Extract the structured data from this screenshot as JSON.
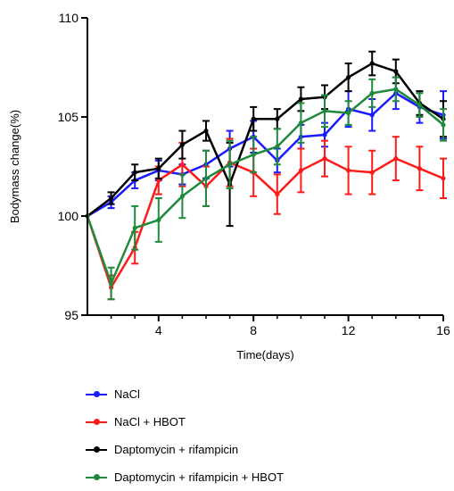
{
  "chart_data": {
    "type": "line",
    "title": "",
    "xlabel": "Time(days)",
    "ylabel": "Bodymass change(%)",
    "xlim": [
      1,
      16
    ],
    "ylim": [
      95,
      110
    ],
    "xticks": [
      4,
      8,
      12,
      16
    ],
    "yticks": [
      95,
      100,
      105,
      110
    ],
    "grid": false,
    "legend_position": "bottom",
    "x": [
      1,
      2,
      3,
      4,
      5,
      6,
      7,
      8,
      9,
      10,
      11,
      12,
      13,
      14,
      15,
      16
    ],
    "series": [
      {
        "name": "NaCl",
        "color": "#1a1aff",
        "values": [
          100.0,
          100.7,
          101.8,
          102.3,
          102.1,
          102.6,
          103.4,
          104.0,
          102.8,
          104.0,
          104.1,
          105.4,
          105.1,
          106.2,
          105.5,
          105.1
        ],
        "errors": [
          0,
          0.3,
          0.4,
          0.5,
          0.5,
          0.7,
          0.9,
          0.8,
          0.6,
          0.6,
          0.6,
          0.9,
          0.8,
          0.8,
          0.8,
          1.2
        ]
      },
      {
        "name": "NaCl + HBOT",
        "color": "#ff1a1a",
        "values": [
          100.0,
          96.4,
          98.4,
          101.8,
          102.6,
          101.5,
          102.7,
          102.2,
          101.1,
          102.3,
          102.9,
          102.3,
          102.2,
          102.9,
          102.4,
          101.9
        ],
        "errors": [
          0,
          0.6,
          0.8,
          0.7,
          1.1,
          1.0,
          1.2,
          1.2,
          1.0,
          1.1,
          0.9,
          1.2,
          1.1,
          1.1,
          1.1,
          1.0
        ]
      },
      {
        "name": "Daptomycin + rifampicin",
        "color": "#000000",
        "values": [
          100.0,
          100.9,
          102.2,
          102.4,
          103.6,
          104.3,
          101.6,
          104.9,
          104.9,
          105.9,
          106.0,
          107.0,
          107.7,
          107.3,
          105.7,
          104.9
        ],
        "errors": [
          0,
          0.3,
          0.4,
          0.5,
          0.7,
          0.5,
          2.1,
          0.6,
          0.5,
          0.6,
          0.6,
          0.7,
          0.6,
          0.6,
          0.6,
          0.9
        ]
      },
      {
        "name": "Daptomycin + rifampicin + HBOT",
        "color": "#1f8a3c",
        "values": [
          100.0,
          96.6,
          99.4,
          99.8,
          101.0,
          101.9,
          102.6,
          103.1,
          103.5,
          104.7,
          105.3,
          105.2,
          106.2,
          106.4,
          105.6,
          104.6
        ],
        "errors": [
          0,
          0.8,
          1.1,
          1.1,
          1.1,
          1.4,
          1.2,
          0.9,
          0.9,
          1.0,
          0.8,
          0.6,
          0.7,
          0.6,
          0.6,
          0.8
        ]
      }
    ]
  }
}
